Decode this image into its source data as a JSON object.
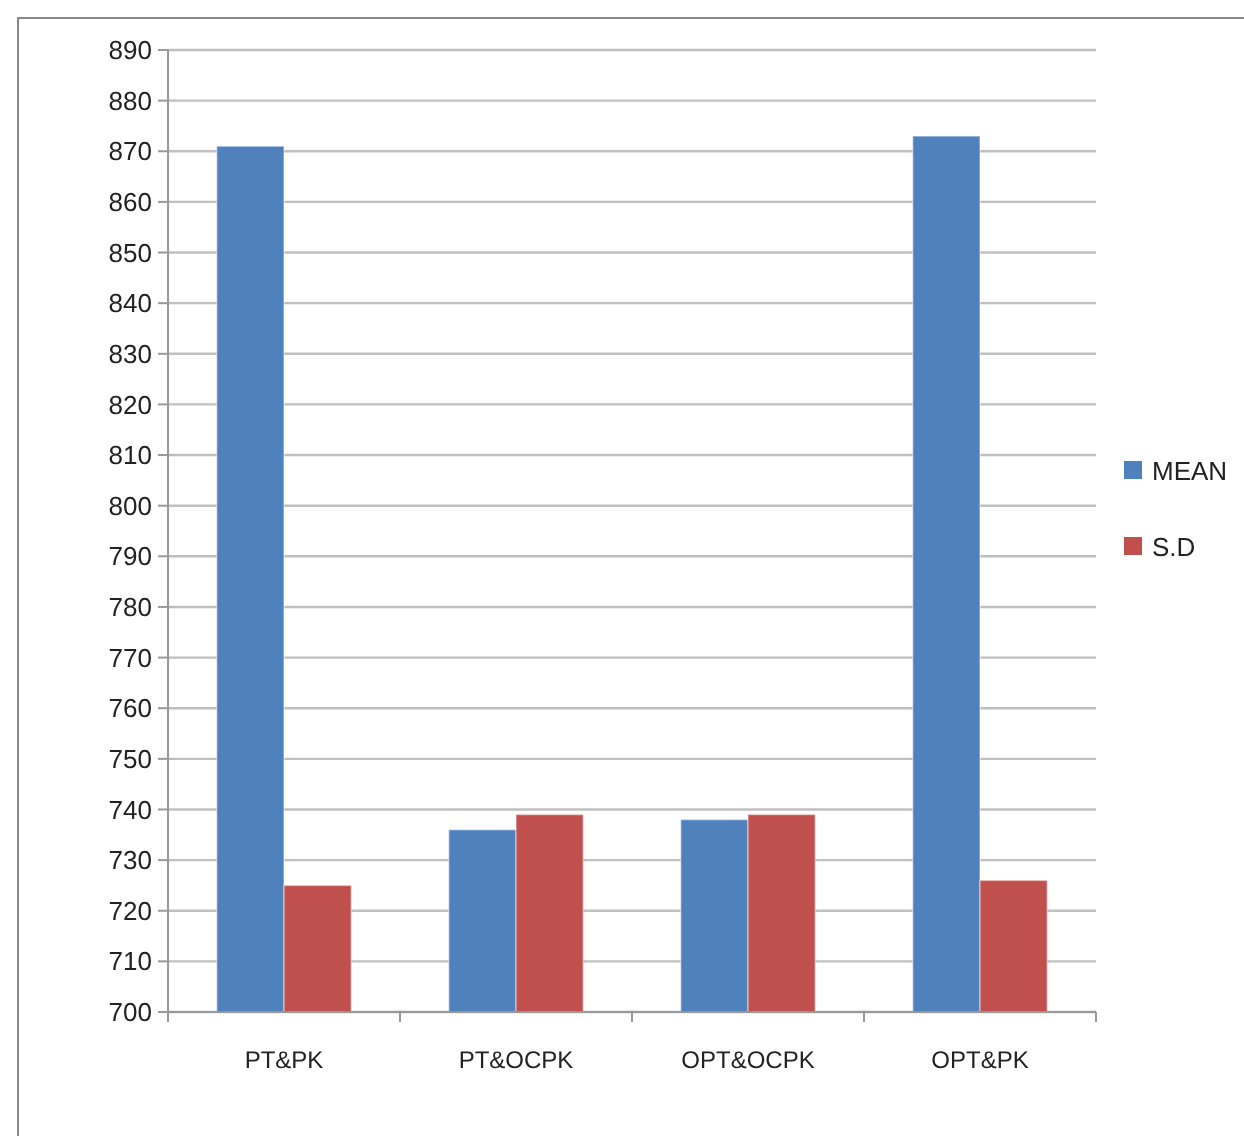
{
  "chart_data": {
    "type": "bar",
    "categories": [
      "PT&PK",
      "PT&OCPK",
      "OPT&OCPK",
      "OPT&PK"
    ],
    "series": [
      {
        "name": "MEAN",
        "color": "#4f81bd",
        "values": [
          871,
          736,
          738,
          873
        ]
      },
      {
        "name": "S.D",
        "color": "#c0504d",
        "values": [
          725,
          739,
          739,
          726
        ]
      }
    ],
    "ylim": [
      700,
      890
    ],
    "yticks": [
      700,
      710,
      720,
      730,
      740,
      750,
      760,
      770,
      780,
      790,
      800,
      810,
      820,
      830,
      840,
      850,
      860,
      870,
      880,
      890
    ],
    "grid": "y",
    "legend": "right"
  }
}
